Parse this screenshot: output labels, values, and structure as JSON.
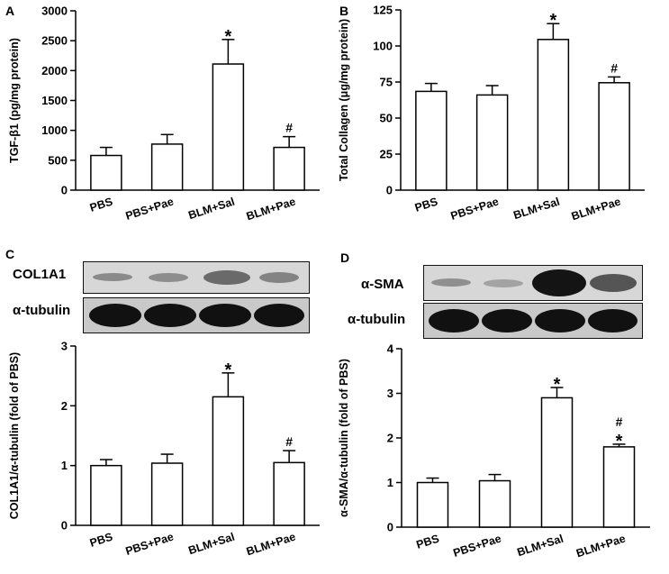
{
  "panels": [
    {
      "letter": "A"
    },
    {
      "letter": "B"
    },
    {
      "letter": "C",
      "blot_labels": [
        "COL1A1",
        "α-tubulin"
      ]
    },
    {
      "letter": "D",
      "blot_labels": [
        "α-SMA",
        "α-tubulin"
      ]
    }
  ],
  "chart_data": [
    {
      "type": "bar",
      "panel": "A",
      "categories": [
        "PBS",
        "PBS+Pae",
        "BLM+Sal",
        "BLM+Pae"
      ],
      "values": [
        580,
        770,
        2110,
        715
      ],
      "errors": [
        135,
        160,
        410,
        180
      ],
      "annotations": [
        "",
        "",
        "*",
        "#"
      ],
      "ylabel": "TGF-β1 (pg/mg protein)",
      "ylim": [
        0,
        3000
      ],
      "yticks": [
        0,
        500,
        1000,
        1500,
        2000,
        2500,
        3000
      ],
      "grid": false
    },
    {
      "type": "bar",
      "panel": "B",
      "categories": [
        "PBS",
        "PBS+Pae",
        "BLM+Sal",
        "BLM+Pae"
      ],
      "values": [
        68.5,
        66,
        104.5,
        74.5
      ],
      "errors": [
        5.5,
        6.5,
        11,
        4
      ],
      "annotations": [
        "",
        "",
        "*",
        "#"
      ],
      "ylabel": "Total Collagen (μg/mg protein)",
      "ylim": [
        0,
        125
      ],
      "yticks": [
        0,
        25,
        50,
        75,
        100,
        125
      ],
      "grid": false
    },
    {
      "type": "bar",
      "panel": "C",
      "categories": [
        "PBS",
        "PBS+Pae",
        "BLM+Sal",
        "BLM+Pae"
      ],
      "values": [
        1.0,
        1.04,
        2.15,
        1.05
      ],
      "errors": [
        0.1,
        0.15,
        0.4,
        0.2
      ],
      "annotations": [
        "",
        "",
        "*",
        "#"
      ],
      "ylabel": "COL1A1/α-tubulin (fold of PBS)",
      "ylim": [
        0,
        3
      ],
      "yticks": [
        0,
        1,
        2,
        3
      ],
      "grid": false
    },
    {
      "type": "bar",
      "panel": "D",
      "categories": [
        "PBS",
        "PBS+Pae",
        "BLM+Sal",
        "BLM+Pae"
      ],
      "values": [
        1.0,
        1.04,
        2.9,
        1.8
      ],
      "errors": [
        0.1,
        0.14,
        0.23,
        0.06
      ],
      "annotations": [
        "",
        "",
        "*",
        "#\n*"
      ],
      "ylabel": "α-SMA/α-tubulin (fold of PBS)",
      "ylim": [
        0,
        4
      ],
      "yticks": [
        0,
        1,
        2,
        3,
        4
      ],
      "grid": false
    }
  ]
}
